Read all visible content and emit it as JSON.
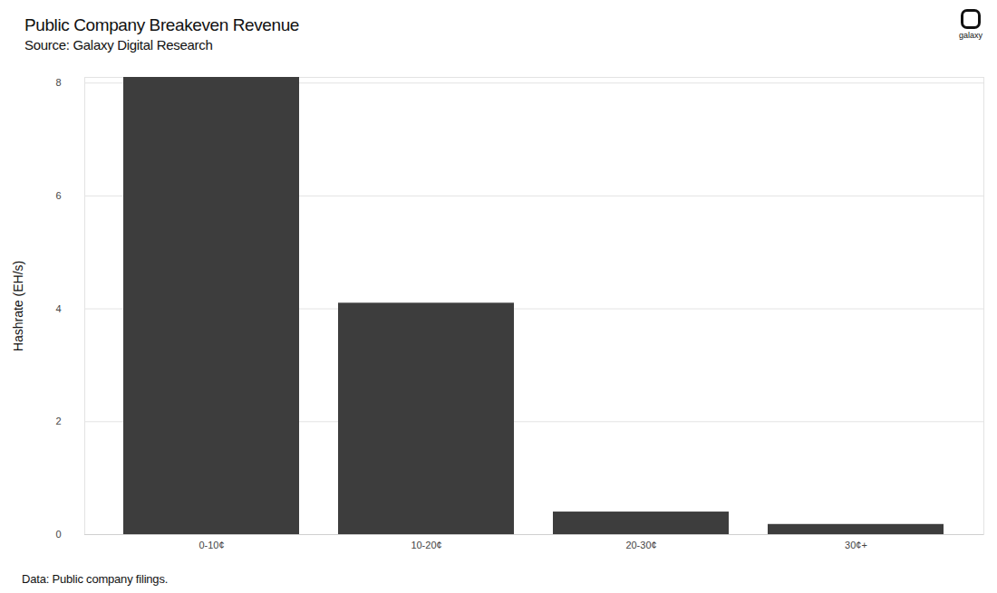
{
  "chart_data": {
    "type": "bar",
    "title": "Public Company Breakeven Revenue",
    "subtitle": "Source: Galaxy Digital Research",
    "brand": "galaxy",
    "caption": "Data: Public company filings.",
    "y_label": "Hashrate (EH/s)",
    "categories": [
      "0-10¢",
      "10-20¢",
      "20-30¢",
      "30¢+"
    ],
    "values": [
      8.1,
      4.1,
      0.4,
      0.18
    ],
    "color": "#3d3d3d",
    "ylim": [
      0,
      8.1
    ],
    "yticks": [
      0,
      2,
      4,
      6,
      8
    ],
    "grid": true
  }
}
